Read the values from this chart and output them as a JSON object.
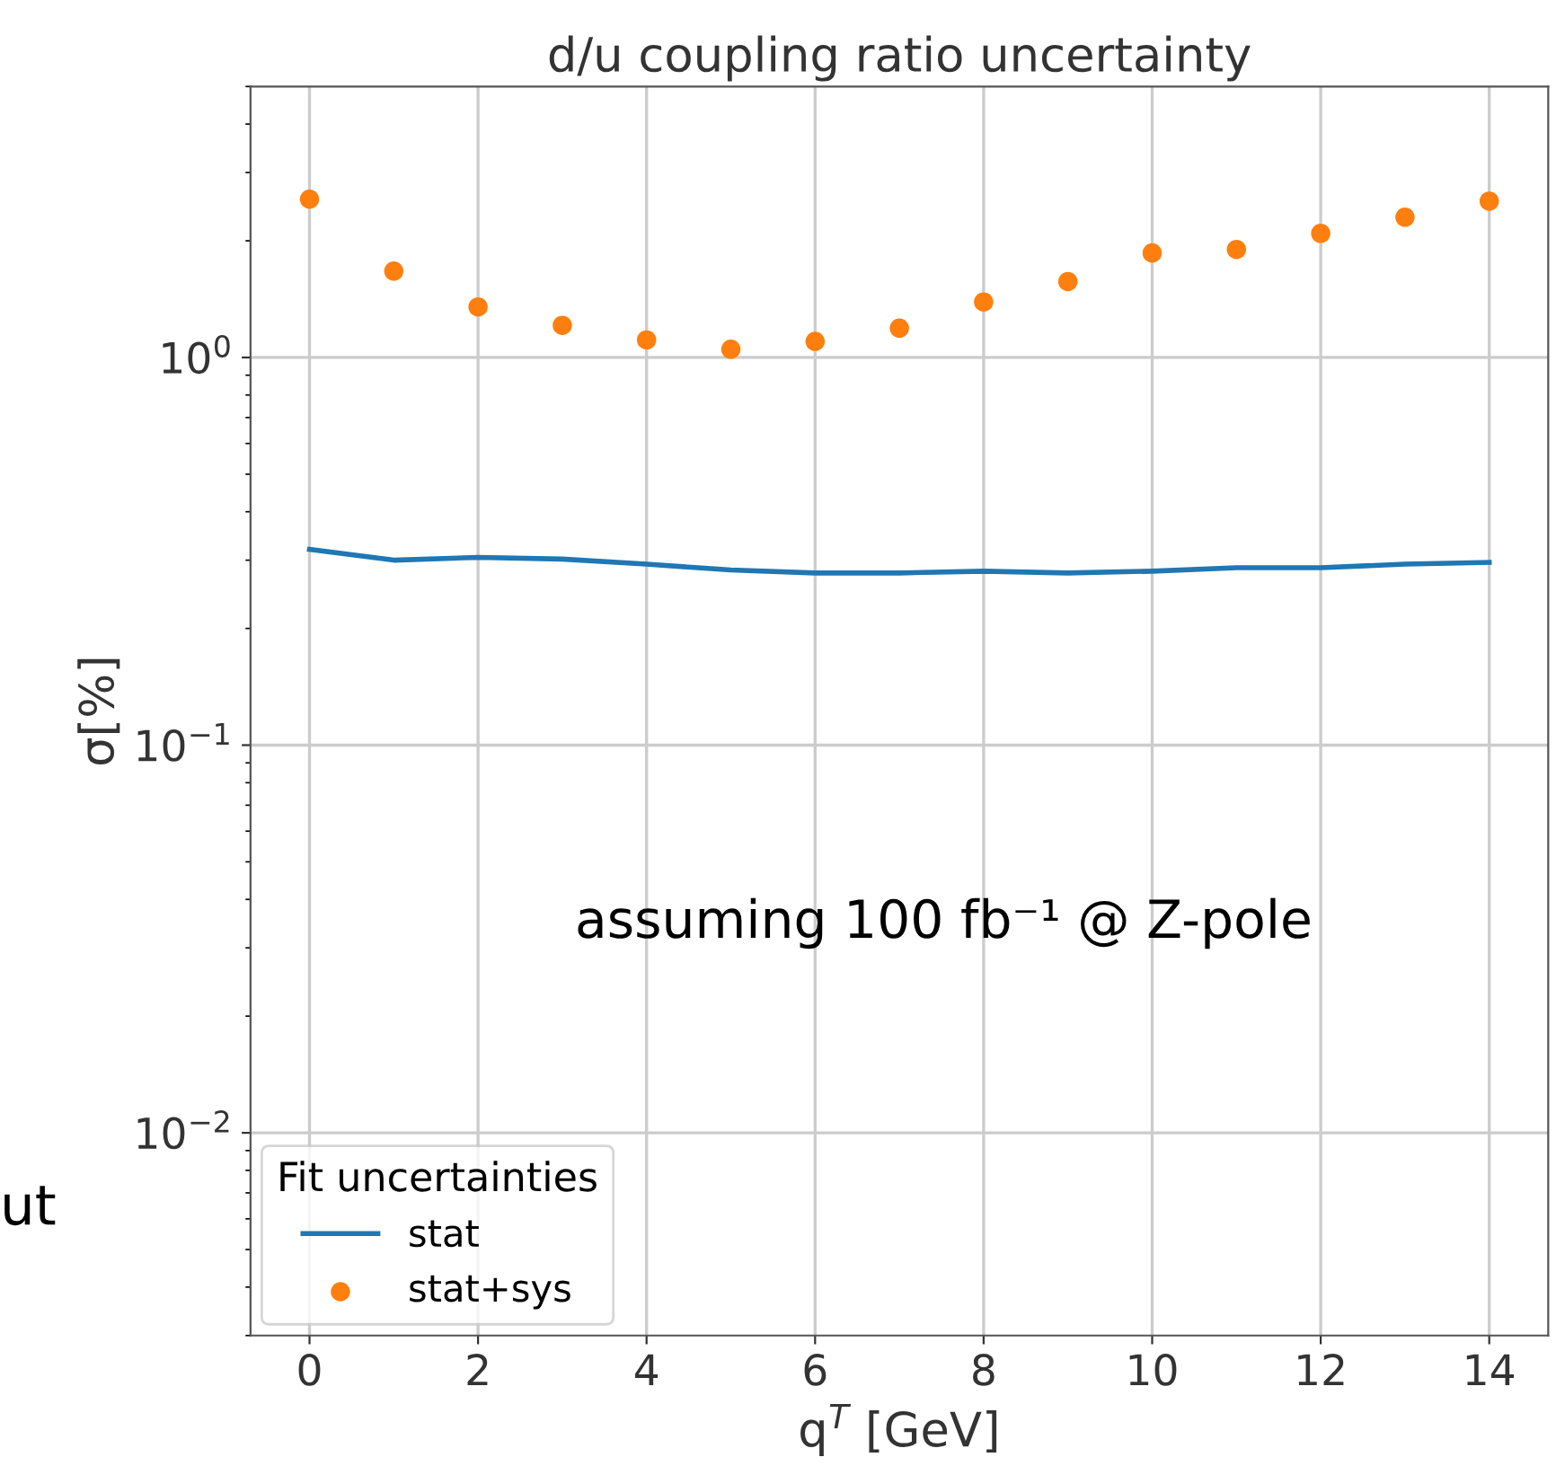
{
  "chart_data": {
    "type": "line",
    "title": "d/u coupling ratio uncertainty",
    "xlabel": "q$^{T}$ [GeV]",
    "ylabel": "σ[%]",
    "x": [
      0,
      1,
      2,
      3,
      4,
      5,
      6,
      7,
      8,
      9,
      10,
      11,
      12,
      13,
      14
    ],
    "series": [
      {
        "name": "stat",
        "color": "#1f77b4",
        "values": [
          0.32,
          0.3,
          0.305,
          0.302,
          0.293,
          0.283,
          0.278,
          0.278,
          0.281,
          0.278,
          0.281,
          0.287,
          0.287,
          0.293,
          0.296
        ]
      },
      {
        "name": "stat+sys",
        "type": "scatter",
        "color": "#ff7f0e",
        "values": [
          2.56,
          1.67,
          1.35,
          1.21,
          1.11,
          1.05,
          1.1,
          1.19,
          1.39,
          1.57,
          1.86,
          1.9,
          2.09,
          2.3,
          2.53
        ]
      }
    ],
    "legend_title": "Fit uncertainties",
    "legend": "bottom left",
    "log": "y",
    "grid": true,
    "xlim": [
      -0.7,
      14.7
    ],
    "xticks": [
      0,
      2,
      4,
      6,
      8,
      10,
      12,
      14
    ],
    "ylim": [
      0.003,
      5
    ],
    "yticks": [
      {
        "value": 0.01,
        "label": "10$^{−2}$"
      },
      {
        "value": 0.1,
        "label": "10$^{−1}$"
      },
      {
        "value": 1,
        "label": "10$^{0}$"
      }
    ],
    "annotations": [
      "assuming 100 fb⁻¹ @ Z-pole",
      "ut"
    ]
  }
}
